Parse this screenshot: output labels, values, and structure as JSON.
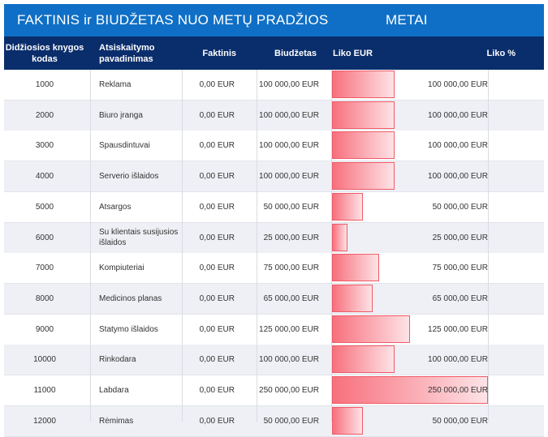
{
  "title": {
    "left": "FAKTINIS ir BIUDŽETAS NUO METŲ PRADŽIOS",
    "right": "METAI"
  },
  "header": {
    "code": "Didžiosios knygos kodas",
    "name": "Atsiskaitymo pavadinimas",
    "actual": "Faktinis",
    "budget": "Biudžetas",
    "remaining": "Liko EUR",
    "remaining_pct": "Liko %"
  },
  "colors": {
    "title_bg": "#0f6fc6",
    "header_bg": "#0a2d6b",
    "bar": "#f7707d"
  },
  "bar_max": 250000,
  "rows": [
    {
      "code": "1000",
      "name": "Reklama",
      "actual": "0,00 EUR",
      "budget": "100 000,00 EUR",
      "remaining": "100 000,00 EUR",
      "remaining_value": 100000
    },
    {
      "code": "2000",
      "name": "Biuro įranga",
      "actual": "0,00 EUR",
      "budget": "100 000,00 EUR",
      "remaining": "100 000,00 EUR",
      "remaining_value": 100000
    },
    {
      "code": "3000",
      "name": "Spausdintuvai",
      "actual": "0,00 EUR",
      "budget": "100 000,00 EUR",
      "remaining": "100 000,00 EUR",
      "remaining_value": 100000
    },
    {
      "code": "4000",
      "name": "Serverio išlaidos",
      "actual": "0,00 EUR",
      "budget": "100 000,00 EUR",
      "remaining": "100 000,00 EUR",
      "remaining_value": 100000
    },
    {
      "code": "5000",
      "name": "Atsargos",
      "actual": "0,00 EUR",
      "budget": "50 000,00 EUR",
      "remaining": "50 000,00 EUR",
      "remaining_value": 50000
    },
    {
      "code": "6000",
      "name": "Su klientais susijusios išlaidos",
      "actual": "0,00 EUR",
      "budget": "25 000,00 EUR",
      "remaining": "25 000,00 EUR",
      "remaining_value": 25000
    },
    {
      "code": "7000",
      "name": "Kompiuteriai",
      "actual": "0,00 EUR",
      "budget": "75 000,00 EUR",
      "remaining": "75 000,00 EUR",
      "remaining_value": 75000
    },
    {
      "code": "8000",
      "name": "Medicinos planas",
      "actual": "0,00 EUR",
      "budget": "65 000,00 EUR",
      "remaining": "65 000,00 EUR",
      "remaining_value": 65000
    },
    {
      "code": "9000",
      "name": "Statymo išlaidos",
      "actual": "0,00 EUR",
      "budget": "125 000,00 EUR",
      "remaining": "125 000,00 EUR",
      "remaining_value": 125000
    },
    {
      "code": "10000",
      "name": "Rinkodara",
      "actual": "0,00 EUR",
      "budget": "100 000,00 EUR",
      "remaining": "100 000,00 EUR",
      "remaining_value": 100000
    },
    {
      "code": "11000",
      "name": "Labdara",
      "actual": "0,00 EUR",
      "budget": "250 000,00 EUR",
      "remaining": "250 000,00 EUR",
      "remaining_value": 250000
    },
    {
      "code": "12000",
      "name": "Rėmimas",
      "actual": "0,00 EUR",
      "budget": "50 000,00 EUR",
      "remaining": "50 000,00 EUR",
      "remaining_value": 50000
    }
  ]
}
